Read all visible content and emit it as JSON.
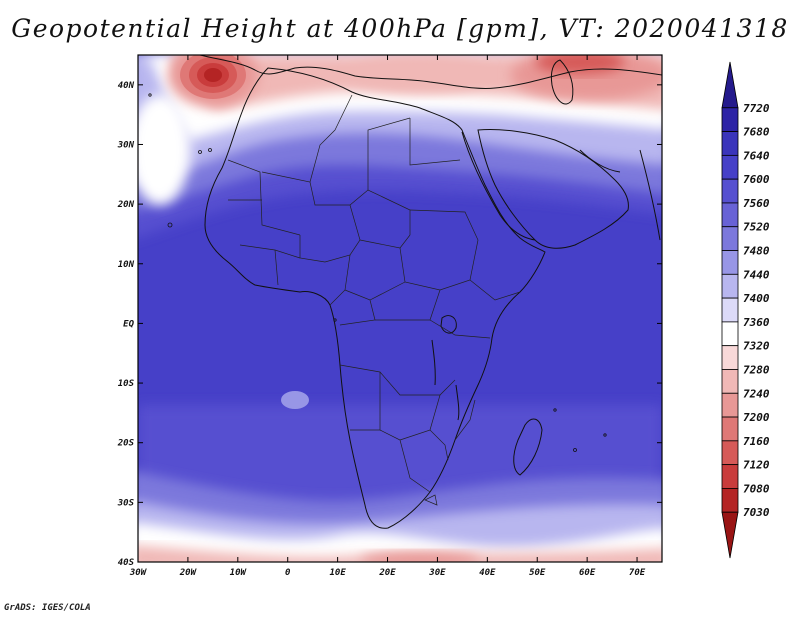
{
  "title": "Geopotential Height at 400hPa [gpm], VT: 2020041318",
  "credit": "GrADS: IGES/COLA",
  "map": {
    "lon_range": [
      -30,
      75
    ],
    "lat_range": [
      -40,
      45
    ],
    "lon_ticks": [
      "30W",
      "20W",
      "10W",
      "0",
      "10E",
      "20E",
      "30E",
      "40E",
      "50E",
      "60E",
      "70E"
    ],
    "lat_ticks": [
      "40N",
      "30N",
      "20N",
      "10N",
      "EQ",
      "10S",
      "20S",
      "30S",
      "40S"
    ]
  },
  "colorbar": {
    "labels": [
      "7720",
      "7680",
      "7640",
      "7600",
      "7560",
      "7520",
      "7480",
      "7440",
      "7400",
      "7360",
      "7320",
      "7280",
      "7240",
      "7200",
      "7160",
      "7120",
      "7080",
      "7030"
    ],
    "colors": [
      "#241a8c",
      "#2d23a6",
      "#3a34bb",
      "#4640c8",
      "#5650d0",
      "#6862d6",
      "#7c78dc",
      "#9896e6",
      "#b8b6ef",
      "#dcdaf8",
      "#ffffff",
      "#f8d8d8",
      "#f0b8b6",
      "#e89896",
      "#df7876",
      "#d65a58",
      "#c93c3c",
      "#b42424",
      "#991414"
    ]
  }
}
